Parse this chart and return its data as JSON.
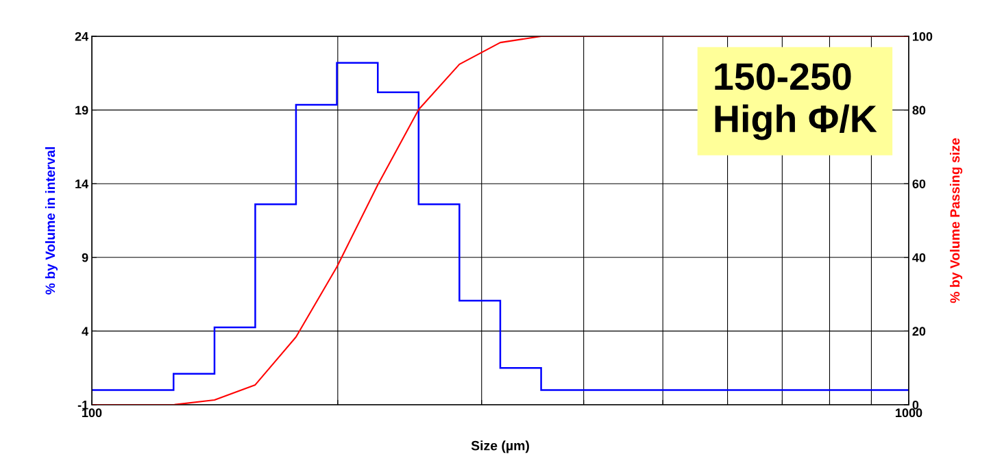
{
  "chart_data": {
    "type": "histogram",
    "xlabel": "Size (µm)",
    "ylabel": "% by Volume in interval",
    "y2label": "% by Volume Passing size",
    "bins": [
      100,
      112.2,
      125.9,
      141.3,
      158.5,
      177.8,
      199.5,
      223.9,
      251.2,
      281.8,
      316.2,
      354.8,
      398.1,
      446.7,
      501.2,
      562.3,
      631,
      707.9,
      794.3,
      891.3,
      1000
    ],
    "values": [
      0,
      0,
      1.1,
      4.25,
      12.6,
      19.35,
      22.2,
      20.2,
      12.6,
      6.06,
      1.5,
      0,
      0,
      0,
      0,
      0,
      0,
      0,
      0,
      0
    ],
    "color": "#0000ff",
    "series": [
      {
        "type": "line",
        "axis": "y2",
        "color": "#ff0000",
        "x": [
          100,
          125.9,
          141.3,
          158.5,
          177.8,
          199.5,
          223.9,
          251.2,
          281.8,
          316.2,
          354.8,
          1000
        ],
        "values": [
          0,
          0,
          1.3,
          5.4,
          18.4,
          37.4,
          59.7,
          80.1,
          92.4,
          98.3,
          100,
          100
        ]
      }
    ],
    "log": "x",
    "xlim": [
      100,
      1000
    ],
    "xticks": [
      100,
      {
        "value": 200,
        "label": null
      },
      {
        "value": 300,
        "label": null
      },
      {
        "value": 400,
        "label": null
      },
      {
        "value": 500,
        "label": null
      },
      {
        "value": 600,
        "label": null
      },
      {
        "value": 700,
        "label": null
      },
      {
        "value": 800,
        "label": null
      },
      {
        "value": 900,
        "label": null
      },
      1000
    ],
    "ylim": [
      -1,
      24
    ],
    "yticks": [
      -1,
      4,
      9,
      14,
      19,
      24
    ],
    "y2lim": [
      0,
      100
    ],
    "y2ticks": [
      0,
      20,
      40,
      60,
      80,
      100
    ],
    "grid": true,
    "annotations": [
      "150-250\nHigh Φ/K"
    ]
  }
}
